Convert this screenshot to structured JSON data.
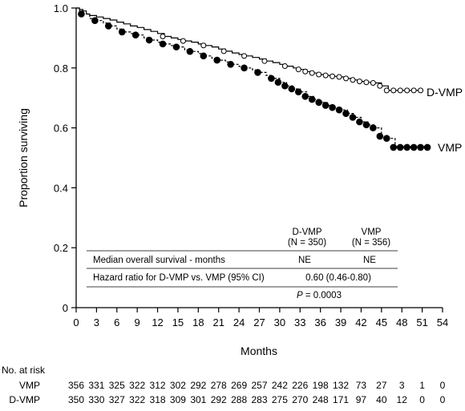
{
  "chart_data": {
    "type": "line",
    "xlabel": "Months",
    "ylabel": "Proportion surviving",
    "xlim": [
      0,
      54
    ],
    "ylim": [
      0,
      1.0
    ],
    "x_ticks": [
      0,
      3,
      6,
      9,
      12,
      15,
      18,
      21,
      24,
      27,
      30,
      33,
      36,
      39,
      42,
      45,
      48,
      51,
      54
    ],
    "y_ticks": [
      0,
      0.2,
      0.4,
      0.6,
      0.8,
      1.0
    ],
    "y_tick_labels": [
      "0",
      "0.2",
      "0.4",
      "0.6",
      "0.8",
      "1.0"
    ],
    "grid": false,
    "legend": "labels at line ends (right)",
    "series": [
      {
        "name": "D-VMP",
        "line_style": "solid",
        "censor_marker": "open-circle",
        "points": [
          [
            0,
            1.0
          ],
          [
            0.5,
            0.995
          ],
          [
            1,
            0.99
          ],
          [
            1.5,
            0.98
          ],
          [
            2,
            0.975
          ],
          [
            3,
            0.97
          ],
          [
            4,
            0.965
          ],
          [
            5,
            0.96
          ],
          [
            6,
            0.953
          ],
          [
            7,
            0.947
          ],
          [
            8,
            0.94
          ],
          [
            9,
            0.935
          ],
          [
            10,
            0.928
          ],
          [
            11,
            0.922
          ],
          [
            12,
            0.915
          ],
          [
            13,
            0.905
          ],
          [
            14,
            0.9
          ],
          [
            15,
            0.895
          ],
          [
            16,
            0.89
          ],
          [
            17,
            0.886
          ],
          [
            18,
            0.88
          ],
          [
            19,
            0.875
          ],
          [
            20,
            0.87
          ],
          [
            21,
            0.863
          ],
          [
            22,
            0.856
          ],
          [
            23,
            0.85
          ],
          [
            24,
            0.845
          ],
          [
            25,
            0.84
          ],
          [
            26,
            0.835
          ],
          [
            27,
            0.83
          ],
          [
            28,
            0.823
          ],
          [
            29,
            0.818
          ],
          [
            30,
            0.812
          ],
          [
            31,
            0.806
          ],
          [
            32,
            0.8
          ],
          [
            33,
            0.795
          ],
          [
            34,
            0.788
          ],
          [
            35,
            0.783
          ],
          [
            36,
            0.778
          ],
          [
            37,
            0.775
          ],
          [
            38,
            0.772
          ],
          [
            39,
            0.77
          ],
          [
            40,
            0.765
          ],
          [
            41,
            0.76
          ],
          [
            42,
            0.755
          ],
          [
            43,
            0.752
          ],
          [
            44,
            0.75
          ],
          [
            45,
            0.74
          ],
          [
            46,
            0.725
          ],
          [
            47,
            0.725
          ],
          [
            48,
            0.725
          ],
          [
            49,
            0.725
          ],
          [
            50,
            0.725
          ],
          [
            51,
            0.725
          ]
        ]
      },
      {
        "name": "VMP",
        "line_style": "dashed",
        "censor_marker": "filled-circle",
        "points": [
          [
            0,
            1.0
          ],
          [
            0.5,
            0.99
          ],
          [
            1,
            0.98
          ],
          [
            2,
            0.965
          ],
          [
            3,
            0.958
          ],
          [
            4,
            0.95
          ],
          [
            5,
            0.94
          ],
          [
            6,
            0.93
          ],
          [
            7,
            0.92
          ],
          [
            8,
            0.915
          ],
          [
            9,
            0.91
          ],
          [
            10,
            0.9
          ],
          [
            11,
            0.893
          ],
          [
            12,
            0.886
          ],
          [
            13,
            0.88
          ],
          [
            14,
            0.875
          ],
          [
            15,
            0.87
          ],
          [
            16,
            0.86
          ],
          [
            17,
            0.855
          ],
          [
            18,
            0.848
          ],
          [
            19,
            0.84
          ],
          [
            20,
            0.832
          ],
          [
            21,
            0.826
          ],
          [
            22,
            0.82
          ],
          [
            23,
            0.812
          ],
          [
            24,
            0.805
          ],
          [
            25,
            0.8
          ],
          [
            26,
            0.793
          ],
          [
            27,
            0.785
          ],
          [
            28,
            0.775
          ],
          [
            29,
            0.765
          ],
          [
            30,
            0.752
          ],
          [
            31,
            0.74
          ],
          [
            32,
            0.73
          ],
          [
            33,
            0.72
          ],
          [
            34,
            0.705
          ],
          [
            35,
            0.695
          ],
          [
            36,
            0.685
          ],
          [
            37,
            0.675
          ],
          [
            38,
            0.668
          ],
          [
            39,
            0.66
          ],
          [
            40,
            0.648
          ],
          [
            41,
            0.635
          ],
          [
            42,
            0.62
          ],
          [
            43,
            0.61
          ],
          [
            44,
            0.6
          ],
          [
            45,
            0.572
          ],
          [
            46,
            0.565
          ],
          [
            47,
            0.535
          ],
          [
            48,
            0.535
          ],
          [
            49,
            0.535
          ],
          [
            50,
            0.535
          ],
          [
            51,
            0.535
          ],
          [
            52,
            0.535
          ]
        ]
      }
    ]
  },
  "inset_table": {
    "col1_name": "D-VMP",
    "col1_n": "(N = 350)",
    "col2_name": "VMP",
    "col2_n": "(N = 356)",
    "row1_label": "Median overall survival - months",
    "row1_col1": "NE",
    "row1_col2": "NE",
    "row2_label": "Hazard ratio for D-VMP vs. VMP (95% CI)",
    "row2_value": "0.60 (0.46-0.80)",
    "p_letter": "P",
    "p_value": " = 0.0003"
  },
  "risk_table": {
    "title": "No. at risk",
    "months": [
      0,
      3,
      6,
      9,
      12,
      15,
      18,
      21,
      24,
      27,
      30,
      33,
      36,
      39,
      42,
      45,
      48,
      51,
      54
    ],
    "rows": [
      {
        "label": "VMP",
        "values": [
          "356",
          "331",
          "325",
          "322",
          "312",
          "302",
          "292",
          "278",
          "269",
          "257",
          "242",
          "226",
          "198",
          "132",
          "73",
          "27",
          "3",
          "1",
          "0"
        ]
      },
      {
        "label": "D-VMP",
        "values": [
          "350",
          "330",
          "327",
          "322",
          "318",
          "309",
          "301",
          "292",
          "288",
          "283",
          "275",
          "270",
          "248",
          "171",
          "97",
          "40",
          "12",
          "0",
          "0"
        ]
      }
    ]
  }
}
